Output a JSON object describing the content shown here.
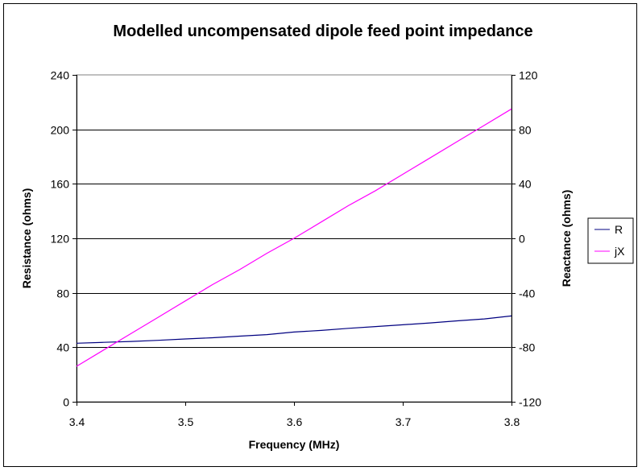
{
  "chart_data": {
    "type": "line",
    "title": "Modelled uncompensated dipole feed point impedance",
    "xlabel": "Frequency (MHz)",
    "ylabel_left": "Resistance (ohms)",
    "ylabel_right": "Reactance (ohms)",
    "xlim": [
      3.4,
      3.8
    ],
    "ylim_left": [
      0,
      240
    ],
    "ylim_right": [
      -120,
      120
    ],
    "x_ticks": [
      "3.4",
      "3.5",
      "3.6",
      "3.7",
      "3.8"
    ],
    "y_ticks_left": [
      "0",
      "40",
      "80",
      "120",
      "160",
      "200",
      "240"
    ],
    "y_ticks_right": [
      "-120",
      "-80",
      "-40",
      "0",
      "40",
      "80",
      "120"
    ],
    "grid": "horizontal major",
    "legend_position": "right",
    "series": [
      {
        "name": "R",
        "axis": "left",
        "color": "#000080",
        "x": [
          3.4,
          3.425,
          3.45,
          3.475,
          3.5,
          3.525,
          3.55,
          3.575,
          3.6,
          3.625,
          3.65,
          3.675,
          3.7,
          3.725,
          3.75,
          3.775,
          3.8
        ],
        "values": [
          43,
          43.6,
          44.3,
          45.1,
          46.1,
          47,
          48.2,
          49.3,
          51.2,
          52.4,
          53.9,
          55.2,
          56.5,
          57.9,
          59.4,
          60.8,
          63
        ]
      },
      {
        "name": "jX",
        "axis": "right",
        "color": "#FF00FF",
        "x": [
          3.4,
          3.425,
          3.45,
          3.475,
          3.5,
          3.525,
          3.55,
          3.575,
          3.6,
          3.625,
          3.65,
          3.675,
          3.7,
          3.725,
          3.75,
          3.775,
          3.8
        ],
        "values": [
          -94,
          -82,
          -70,
          -58,
          -46,
          -34,
          -23,
          -11,
          0,
          12,
          24,
          35,
          47,
          59,
          71,
          83,
          95
        ]
      }
    ]
  }
}
